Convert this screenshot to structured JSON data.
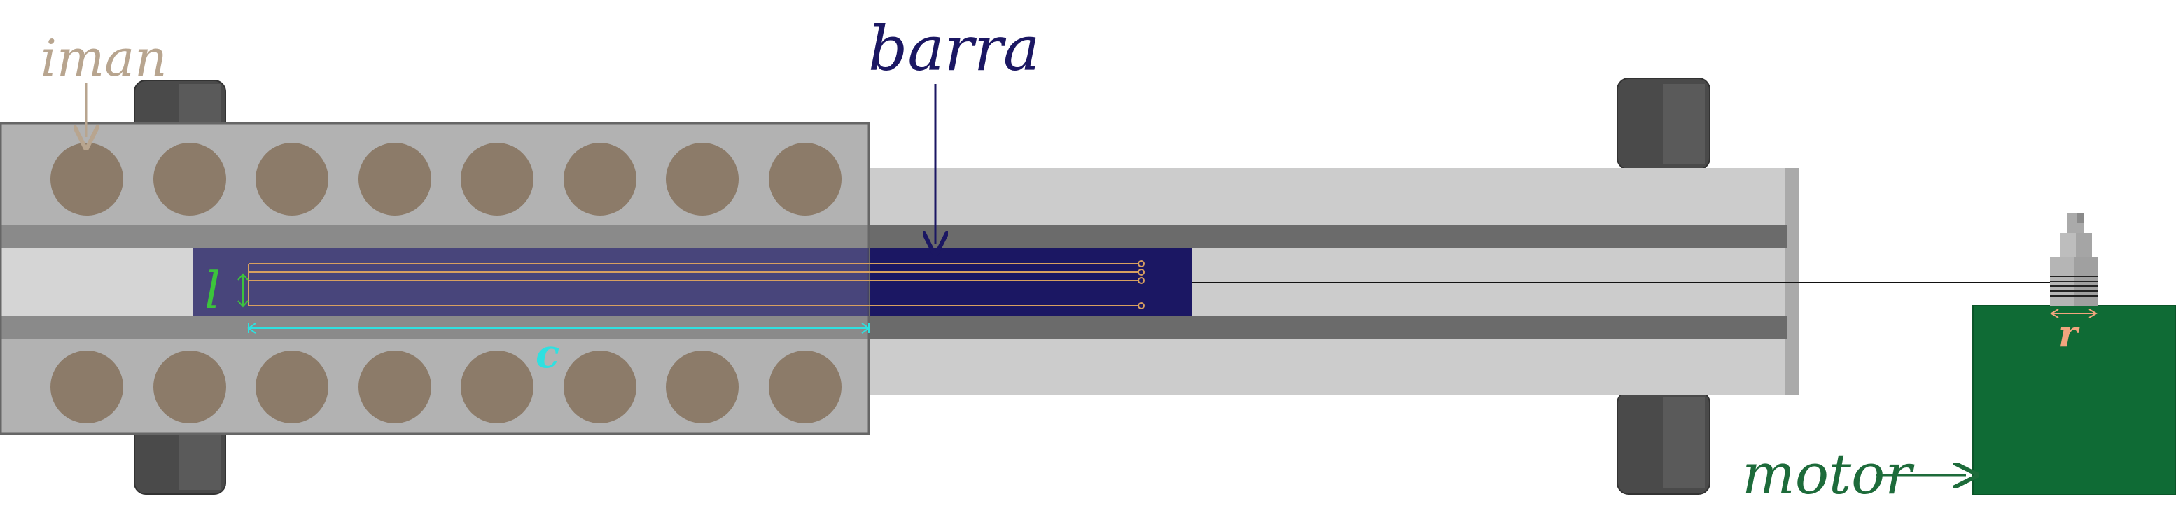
{
  "labels": {
    "magnet": "iman",
    "bar": "barra",
    "motor": "motor",
    "bar_width": "l",
    "overlap_length": "c",
    "radius": "r"
  },
  "colors": {
    "magnet_label": "#b8a58f",
    "magnet_fill": "#8c7b69",
    "bar_label": "#1b1763",
    "bar_fill": "#1b1763",
    "motor_label": "#1d6b3a",
    "motor_fill": "#0f6b35",
    "l_dimension": "#3cc43c",
    "c_dimension": "#2fe0e0",
    "r_dimension": "#f2a57e",
    "coil_wire": "#d8a060",
    "housing": "#b2b2b2",
    "rail": "#cccccc",
    "rail_track": "#6b6b6b",
    "wheel": "#4a4a4a"
  }
}
